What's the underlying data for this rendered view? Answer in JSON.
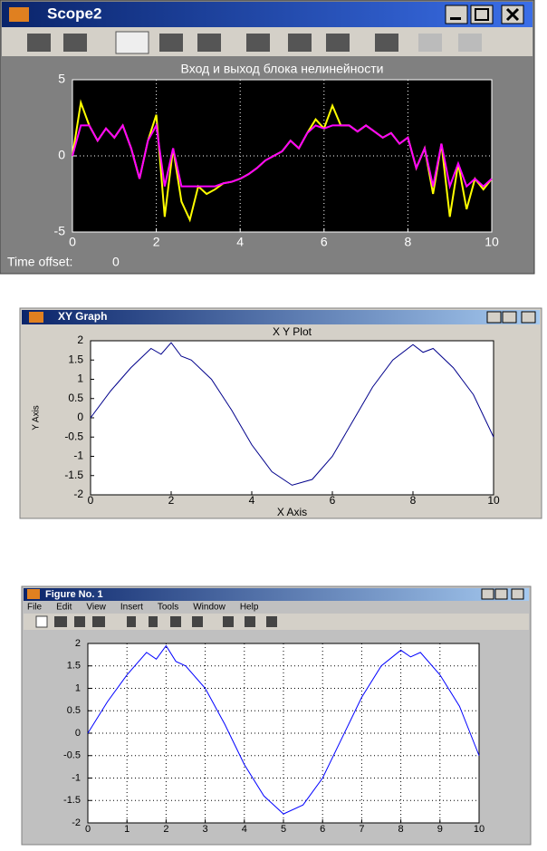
{
  "windows": [
    {
      "title": "Scope2",
      "time_offset_label": "Time offset:",
      "time_offset_value": 0
    },
    {
      "title": "XY Graph"
    },
    {
      "title": "Figure No. 1",
      "menu": [
        "File",
        "Edit",
        "View",
        "Insert",
        "Tools",
        "Window",
        "Help"
      ]
    }
  ],
  "chart_data": [
    {
      "type": "line",
      "title": "Вход и выход блока нелинейности",
      "x": [
        0,
        0.2,
        0.4,
        0.6,
        0.8,
        1,
        1.2,
        1.4,
        1.6,
        1.8,
        2,
        2.2,
        2.4,
        2.6,
        2.8,
        3,
        3.2,
        3.4,
        3.6,
        3.8,
        4,
        4.2,
        4.4,
        4.6,
        4.8,
        5,
        5.2,
        5.4,
        5.6,
        5.8,
        6,
        6.2,
        6.4,
        6.6,
        6.8,
        7,
        7.2,
        7.4,
        7.6,
        7.8,
        8,
        8.2,
        8.4,
        8.6,
        8.8,
        9,
        9.2,
        9.4,
        9.6,
        9.8,
        10
      ],
      "series": [
        {
          "color": "#ffff00",
          "values": [
            0,
            3.5,
            2,
            1,
            1.8,
            1.2,
            2,
            0.5,
            -1.5,
            1,
            2.7,
            -4,
            0.5,
            -3,
            -4.2,
            -2,
            -2.5,
            -2.2,
            -1.8,
            -1.7,
            -1.5,
            -1.2,
            -0.8,
            -0.3,
            0,
            0.3,
            1,
            0.5,
            1.5,
            2.4,
            1.8,
            3.3,
            2,
            2,
            1.6,
            2,
            1.6,
            1.2,
            1.5,
            0.8,
            1.2,
            -0.8,
            0.5,
            -2.5,
            0.8,
            -4,
            -0.5,
            -3.5,
            -1.5,
            -2.2,
            -1.5
          ]
        },
        {
          "color": "#ff00ff",
          "values": [
            0,
            2,
            2,
            1,
            1.8,
            1.2,
            2,
            0.5,
            -1.5,
            1,
            2,
            -2,
            0.5,
            -2,
            -2,
            -2,
            -2,
            -2,
            -1.8,
            -1.7,
            -1.5,
            -1.2,
            -0.8,
            -0.3,
            0,
            0.3,
            1,
            0.5,
            1.5,
            2,
            1.8,
            2,
            2,
            2,
            1.6,
            2,
            1.6,
            1.2,
            1.5,
            0.8,
            1.2,
            -0.8,
            0.5,
            -2,
            0.8,
            -2,
            -0.5,
            -2,
            -1.5,
            -2,
            -1.5
          ]
        }
      ],
      "xlim": [
        0,
        10
      ],
      "xticks": [
        0,
        2,
        4,
        6,
        8,
        10
      ],
      "ylim": [
        -5,
        5
      ],
      "yticks": [
        -5,
        0,
        5
      ],
      "grid": true
    },
    {
      "type": "line",
      "title": "X Y Plot",
      "xlabel": "X Axis",
      "ylabel": "Y Axis",
      "x": [
        0,
        0.5,
        1,
        1.5,
        1.75,
        2,
        2.25,
        2.5,
        3,
        3.5,
        4,
        4.5,
        5,
        5.5,
        6,
        6.5,
        7,
        7.5,
        8,
        8.25,
        8.5,
        9,
        9.5,
        10
      ],
      "series": [
        {
          "color": "#00008b",
          "values": [
            0,
            0.7,
            1.3,
            1.8,
            1.65,
            1.95,
            1.6,
            1.5,
            1,
            0.2,
            -0.7,
            -1.4,
            -1.75,
            -1.6,
            -1,
            -0.1,
            0.8,
            1.5,
            1.9,
            1.7,
            1.8,
            1.3,
            0.6,
            -0.5
          ]
        }
      ],
      "xlim": [
        0,
        10
      ],
      "xticks": [
        0,
        2,
        4,
        6,
        8,
        10
      ],
      "ylim": [
        -2,
        2
      ],
      "yticks": [
        -2,
        -1.5,
        -1,
        -0.5,
        0,
        0.5,
        1,
        1.5,
        2
      ],
      "grid": false
    },
    {
      "type": "line",
      "x": [
        0,
        0.5,
        1,
        1.5,
        1.75,
        2,
        2.25,
        2.5,
        3,
        3.5,
        4,
        4.5,
        5,
        5.5,
        6,
        6.5,
        7,
        7.5,
        8,
        8.25,
        8.5,
        9,
        9.5,
        10
      ],
      "series": [
        {
          "color": "#0000ff",
          "values": [
            0,
            0.7,
            1.3,
            1.8,
            1.65,
            1.95,
            1.6,
            1.5,
            1,
            0.2,
            -0.7,
            -1.4,
            -1.8,
            -1.6,
            -1,
            -0.1,
            0.8,
            1.5,
            1.85,
            1.7,
            1.8,
            1.3,
            0.6,
            -0.5
          ]
        }
      ],
      "xlim": [
        0,
        10
      ],
      "xticks": [
        0,
        1,
        2,
        3,
        4,
        5,
        6,
        7,
        8,
        9,
        10
      ],
      "ylim": [
        -2,
        2
      ],
      "yticks": [
        -2,
        -1.5,
        -1,
        -0.5,
        0,
        0.5,
        1,
        1.5,
        2
      ],
      "grid": true
    }
  ]
}
